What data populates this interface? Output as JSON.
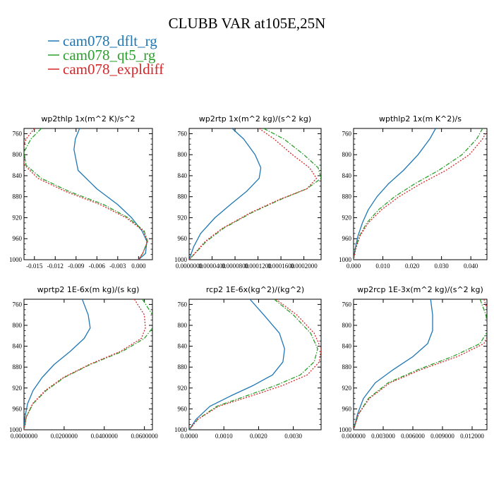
{
  "title": "CLUBB VAR at105E,25N",
  "legend": [
    {
      "label": "cam078_dflt_rg",
      "color": "#1f77b4"
    },
    {
      "label": "cam078_qt5_rg",
      "color": "#2ca02c"
    },
    {
      "label": "cam078_expldiff",
      "color": "#d62728"
    }
  ],
  "chart_data": [
    {
      "type": "line",
      "title": "wp2thlp   1x(m^2 K)/s^2",
      "xlim": [
        -0.0165,
        0.002
      ],
      "ylim": [
        1000,
        750
      ],
      "xticks": [
        -0.015,
        -0.012,
        -0.009,
        -0.006,
        -0.003,
        0.0
      ],
      "xtick_labels": [
        "-0.015",
        "-0.012",
        "-0.009",
        "-0.006",
        "-0.003",
        "0.000"
      ],
      "yticks": [
        760,
        800,
        840,
        880,
        920,
        960,
        1000
      ],
      "ytick_labels": [
        "760",
        "800",
        "840",
        "880",
        "920",
        "960",
        "1000"
      ],
      "series": [
        {
          "name": "cam078_dflt_rg",
          "x": [
            -0.0085,
            -0.0091,
            -0.0093,
            -0.0087,
            -0.006,
            -0.003,
            -0.001,
            0.0005,
            0.0012,
            0.001,
            0.0
          ],
          "y": [
            750,
            770,
            790,
            830,
            865,
            895,
            920,
            945,
            965,
            988,
            1000
          ]
        },
        {
          "name": "cam078_qt5_rg",
          "x": [
            -0.014,
            -0.0155,
            -0.0165,
            -0.0162,
            -0.014,
            -0.01,
            -0.005,
            -0.0015,
            0.0008,
            0.0013,
            0.0006,
            0.0
          ],
          "y": [
            750,
            770,
            795,
            820,
            845,
            870,
            895,
            920,
            945,
            965,
            988,
            1000
          ]
        },
        {
          "name": "cam078_expldiff",
          "x": [
            -0.015,
            -0.0162,
            -0.0168,
            -0.0164,
            -0.0145,
            -0.0105,
            -0.0055,
            -0.0018,
            0.0007,
            0.0013,
            0.0006,
            0.0
          ],
          "y": [
            750,
            770,
            795,
            820,
            845,
            870,
            895,
            920,
            945,
            965,
            988,
            1000
          ]
        }
      ]
    },
    {
      "type": "line",
      "title": "wp2rtp   1x(m^2 kg)/(s^2 kg)",
      "xlim": [
        0.0,
        0.00023
      ],
      "ylim": [
        1000,
        750
      ],
      "xticks": [
        0.0,
        4e-05,
        8e-05,
        0.00012,
        0.00016,
        0.0002
      ],
      "xtick_labels": [
        "0.0000000",
        "0.0000400",
        "0.0000800",
        "0.0001200",
        "0.0001600",
        "0.0002000"
      ],
      "yticks": [
        760,
        800,
        840,
        880,
        920,
        960,
        1000
      ],
      "ytick_labels": [
        "760",
        "800",
        "840",
        "880",
        "920",
        "960",
        "1000"
      ],
      "series": [
        {
          "name": "cam078_dflt_rg",
          "x": [
            7.5e-05,
            9.5e-05,
            0.000115,
            0.000125,
            0.000122,
            0.0001,
            7.2e-05,
            4.5e-05,
            2e-05,
            8e-06,
            0.0
          ],
          "y": [
            750,
            770,
            800,
            825,
            845,
            870,
            895,
            920,
            950,
            975,
            1000
          ]
        },
        {
          "name": "cam078_qt5_rg",
          "x": [
            0.00013,
            0.000165,
            0.0002,
            0.000225,
            0.00023,
            0.000205,
            0.00016,
            0.00011,
            6e-05,
            3e-05,
            0.0
          ],
          "y": [
            750,
            770,
            800,
            825,
            845,
            865,
            885,
            910,
            940,
            965,
            1000
          ]
        },
        {
          "name": "cam078_expldiff",
          "x": [
            0.000122,
            0.000148,
            0.00018,
            0.00021,
            0.000222,
            0.000205,
            0.000158,
            0.000108,
            5.8e-05,
            2.8e-05,
            0.0
          ],
          "y": [
            750,
            770,
            800,
            825,
            845,
            865,
            885,
            910,
            940,
            965,
            1000
          ]
        }
      ]
    },
    {
      "type": "line",
      "title": "wpthlp2   1x(m K^2)/s",
      "xlim": [
        0.0,
        0.0455
      ],
      "ylim": [
        1000,
        750
      ],
      "xticks": [
        0.0,
        0.01,
        0.02,
        0.03,
        0.04
      ],
      "xtick_labels": [
        "0.000",
        "0.010",
        "0.020",
        "0.030",
        "0.040"
      ],
      "yticks": [
        760,
        800,
        840,
        880,
        920,
        960,
        1000
      ],
      "ytick_labels": [
        "760",
        "800",
        "840",
        "880",
        "920",
        "960",
        "1000"
      ],
      "series": [
        {
          "name": "cam078_dflt_rg",
          "x": [
            0.028,
            0.026,
            0.022,
            0.017,
            0.012,
            0.008,
            0.005,
            0.003,
            0.0015,
            0.0005,
            0.0
          ],
          "y": [
            750,
            770,
            800,
            830,
            855,
            880,
            905,
            930,
            955,
            980,
            1000
          ]
        },
        {
          "name": "cam078_qt5_rg",
          "x": [
            0.044,
            0.042,
            0.037,
            0.029,
            0.021,
            0.014,
            0.0085,
            0.0045,
            0.002,
            0.0006,
            0.0
          ],
          "y": [
            750,
            770,
            800,
            830,
            855,
            880,
            905,
            930,
            955,
            980,
            1000
          ]
        },
        {
          "name": "cam078_expldiff",
          "x": [
            0.046,
            0.044,
            0.0395,
            0.0315,
            0.023,
            0.0155,
            0.0095,
            0.005,
            0.0022,
            0.0007,
            0.0
          ],
          "y": [
            750,
            770,
            800,
            830,
            855,
            880,
            905,
            930,
            955,
            980,
            1000
          ]
        }
      ]
    },
    {
      "type": "line",
      "title": "wprtp2   1E-6x(m kg)/(s kg)",
      "xlim": [
        0.0,
        0.064
      ],
      "ylim": [
        1000,
        750
      ],
      "xticks": [
        0.0,
        0.02,
        0.04,
        0.06
      ],
      "xtick_labels": [
        "0.0000000",
        "0.0200000",
        "0.0400000",
        "0.0600000"
      ],
      "yticks": [
        760,
        800,
        840,
        880,
        920,
        960,
        1000
      ],
      "ytick_labels": [
        "760",
        "800",
        "840",
        "880",
        "920",
        "960",
        "1000"
      ],
      "series": [
        {
          "name": "cam078_dflt_rg",
          "x": [
            0.029,
            0.032,
            0.033,
            0.03,
            0.023,
            0.015,
            0.009,
            0.0045,
            0.0018,
            0.0005,
            0.0
          ],
          "y": [
            750,
            780,
            805,
            825,
            850,
            875,
            900,
            925,
            950,
            975,
            1000
          ]
        },
        {
          "name": "cam078_qt5_rg",
          "x": [
            0.059,
            0.064,
            0.064,
            0.06,
            0.049,
            0.033,
            0.02,
            0.011,
            0.0045,
            0.0012,
            0.0
          ],
          "y": [
            750,
            780,
            805,
            825,
            850,
            875,
            900,
            925,
            950,
            975,
            1000
          ]
        },
        {
          "name": "cam078_expldiff",
          "x": [
            0.055,
            0.06,
            0.0605,
            0.0585,
            0.048,
            0.0325,
            0.0195,
            0.0105,
            0.0043,
            0.0012,
            0.0
          ],
          "y": [
            750,
            780,
            805,
            825,
            850,
            875,
            900,
            925,
            950,
            975,
            1000
          ]
        }
      ]
    },
    {
      "type": "line",
      "title": "rcp2   1E-6x(kg^2)/(kg^2)",
      "xlim": [
        0.0,
        0.0038
      ],
      "ylim": [
        1000,
        750
      ],
      "xticks": [
        0.0,
        0.001,
        0.002,
        0.003
      ],
      "xtick_labels": [
        "0.0000",
        "0.0010",
        "0.0020",
        "0.0030"
      ],
      "yticks": [
        760,
        800,
        840,
        880,
        920,
        960,
        1000
      ],
      "ytick_labels": [
        "760",
        "800",
        "840",
        "880",
        "920",
        "960",
        "1000"
      ],
      "series": [
        {
          "name": "cam078_dflt_rg",
          "x": [
            0.00175,
            0.00215,
            0.0026,
            0.00275,
            0.0027,
            0.0024,
            0.00185,
            0.0012,
            0.0006,
            0.0002,
            0.0
          ],
          "y": [
            750,
            780,
            815,
            845,
            870,
            895,
            915,
            935,
            955,
            980,
            1000
          ]
        },
        {
          "name": "cam078_qt5_rg",
          "x": [
            0.00245,
            0.003,
            0.0035,
            0.0037,
            0.0036,
            0.0032,
            0.0025,
            0.00165,
            0.0008,
            0.00025,
            0.0
          ],
          "y": [
            750,
            780,
            815,
            845,
            870,
            895,
            915,
            935,
            955,
            980,
            1000
          ]
        },
        {
          "name": "cam078_expldiff",
          "x": [
            0.0025,
            0.0031,
            0.0036,
            0.0038,
            0.00375,
            0.0034,
            0.0027,
            0.0018,
            0.00085,
            0.00025,
            0.0
          ],
          "y": [
            750,
            780,
            815,
            845,
            870,
            895,
            915,
            935,
            955,
            980,
            1000
          ]
        }
      ]
    },
    {
      "type": "line",
      "title": "wp2rcp   1E-3x(m^2 kg)/(s^2 kg)",
      "xlim": [
        0.0,
        0.0135
      ],
      "ylim": [
        1000,
        750
      ],
      "xticks": [
        0.0,
        0.003,
        0.006,
        0.009,
        0.012
      ],
      "xtick_labels": [
        "0.000000",
        "0.003000",
        "0.006000",
        "0.009000",
        "0.012000"
      ],
      "yticks": [
        760,
        800,
        840,
        880,
        920,
        960,
        1000
      ],
      "ytick_labels": [
        "760",
        "800",
        "840",
        "880",
        "920",
        "960",
        "1000"
      ],
      "series": [
        {
          "name": "cam078_dflt_rg",
          "x": [
            0.0078,
            0.008,
            0.008,
            0.0075,
            0.006,
            0.004,
            0.0022,
            0.001,
            0.0004,
            0.0
          ],
          "y": [
            750,
            780,
            810,
            835,
            860,
            885,
            910,
            940,
            970,
            1000
          ]
        },
        {
          "name": "cam078_qt5_rg",
          "x": [
            0.0128,
            0.0134,
            0.0136,
            0.0128,
            0.01,
            0.0065,
            0.0035,
            0.0015,
            0.0005,
            0.0
          ],
          "y": [
            750,
            780,
            810,
            835,
            860,
            885,
            910,
            940,
            970,
            1000
          ]
        },
        {
          "name": "cam078_expldiff",
          "x": [
            0.0132,
            0.0137,
            0.0138,
            0.0132,
            0.0105,
            0.0068,
            0.0037,
            0.0016,
            0.0005,
            0.0
          ],
          "y": [
            750,
            780,
            810,
            835,
            860,
            885,
            910,
            940,
            970,
            1000
          ]
        }
      ]
    }
  ]
}
